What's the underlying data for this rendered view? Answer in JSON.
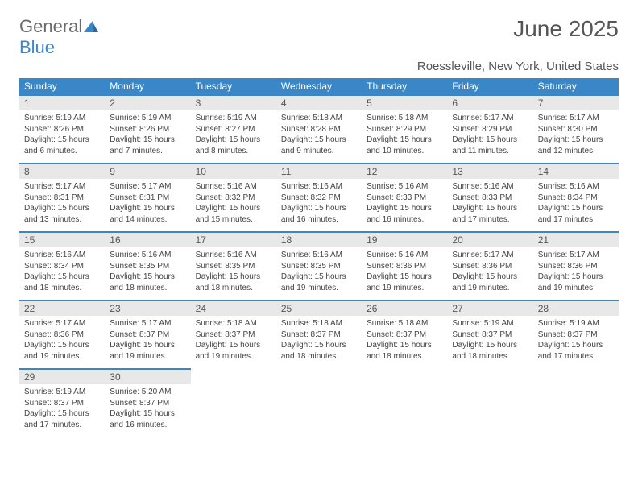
{
  "brand": {
    "part1": "General",
    "part2": "Blue"
  },
  "title": "June 2025",
  "location": "Roessleville, New York, United States",
  "colors": {
    "accent": "#3a87c8",
    "header_text": "#ffffff",
    "daynum_bg": "#e8e8e8",
    "body_text": "#444444",
    "title_text": "#555555"
  },
  "weekdays": [
    "Sunday",
    "Monday",
    "Tuesday",
    "Wednesday",
    "Thursday",
    "Friday",
    "Saturday"
  ],
  "days": [
    {
      "n": "1",
      "sunrise": "5:19 AM",
      "sunset": "8:26 PM",
      "daylight": "15 hours and 6 minutes."
    },
    {
      "n": "2",
      "sunrise": "5:19 AM",
      "sunset": "8:26 PM",
      "daylight": "15 hours and 7 minutes."
    },
    {
      "n": "3",
      "sunrise": "5:19 AM",
      "sunset": "8:27 PM",
      "daylight": "15 hours and 8 minutes."
    },
    {
      "n": "4",
      "sunrise": "5:18 AM",
      "sunset": "8:28 PM",
      "daylight": "15 hours and 9 minutes."
    },
    {
      "n": "5",
      "sunrise": "5:18 AM",
      "sunset": "8:29 PM",
      "daylight": "15 hours and 10 minutes."
    },
    {
      "n": "6",
      "sunrise": "5:17 AM",
      "sunset": "8:29 PM",
      "daylight": "15 hours and 11 minutes."
    },
    {
      "n": "7",
      "sunrise": "5:17 AM",
      "sunset": "8:30 PM",
      "daylight": "15 hours and 12 minutes."
    },
    {
      "n": "8",
      "sunrise": "5:17 AM",
      "sunset": "8:31 PM",
      "daylight": "15 hours and 13 minutes."
    },
    {
      "n": "9",
      "sunrise": "5:17 AM",
      "sunset": "8:31 PM",
      "daylight": "15 hours and 14 minutes."
    },
    {
      "n": "10",
      "sunrise": "5:16 AM",
      "sunset": "8:32 PM",
      "daylight": "15 hours and 15 minutes."
    },
    {
      "n": "11",
      "sunrise": "5:16 AM",
      "sunset": "8:32 PM",
      "daylight": "15 hours and 16 minutes."
    },
    {
      "n": "12",
      "sunrise": "5:16 AM",
      "sunset": "8:33 PM",
      "daylight": "15 hours and 16 minutes."
    },
    {
      "n": "13",
      "sunrise": "5:16 AM",
      "sunset": "8:33 PM",
      "daylight": "15 hours and 17 minutes."
    },
    {
      "n": "14",
      "sunrise": "5:16 AM",
      "sunset": "8:34 PM",
      "daylight": "15 hours and 17 minutes."
    },
    {
      "n": "15",
      "sunrise": "5:16 AM",
      "sunset": "8:34 PM",
      "daylight": "15 hours and 18 minutes."
    },
    {
      "n": "16",
      "sunrise": "5:16 AM",
      "sunset": "8:35 PM",
      "daylight": "15 hours and 18 minutes."
    },
    {
      "n": "17",
      "sunrise": "5:16 AM",
      "sunset": "8:35 PM",
      "daylight": "15 hours and 18 minutes."
    },
    {
      "n": "18",
      "sunrise": "5:16 AM",
      "sunset": "8:35 PM",
      "daylight": "15 hours and 19 minutes."
    },
    {
      "n": "19",
      "sunrise": "5:16 AM",
      "sunset": "8:36 PM",
      "daylight": "15 hours and 19 minutes."
    },
    {
      "n": "20",
      "sunrise": "5:17 AM",
      "sunset": "8:36 PM",
      "daylight": "15 hours and 19 minutes."
    },
    {
      "n": "21",
      "sunrise": "5:17 AM",
      "sunset": "8:36 PM",
      "daylight": "15 hours and 19 minutes."
    },
    {
      "n": "22",
      "sunrise": "5:17 AM",
      "sunset": "8:36 PM",
      "daylight": "15 hours and 19 minutes."
    },
    {
      "n": "23",
      "sunrise": "5:17 AM",
      "sunset": "8:37 PM",
      "daylight": "15 hours and 19 minutes."
    },
    {
      "n": "24",
      "sunrise": "5:18 AM",
      "sunset": "8:37 PM",
      "daylight": "15 hours and 19 minutes."
    },
    {
      "n": "25",
      "sunrise": "5:18 AM",
      "sunset": "8:37 PM",
      "daylight": "15 hours and 18 minutes."
    },
    {
      "n": "26",
      "sunrise": "5:18 AM",
      "sunset": "8:37 PM",
      "daylight": "15 hours and 18 minutes."
    },
    {
      "n": "27",
      "sunrise": "5:19 AM",
      "sunset": "8:37 PM",
      "daylight": "15 hours and 18 minutes."
    },
    {
      "n": "28",
      "sunrise": "5:19 AM",
      "sunset": "8:37 PM",
      "daylight": "15 hours and 17 minutes."
    },
    {
      "n": "29",
      "sunrise": "5:19 AM",
      "sunset": "8:37 PM",
      "daylight": "15 hours and 17 minutes."
    },
    {
      "n": "30",
      "sunrise": "5:20 AM",
      "sunset": "8:37 PM",
      "daylight": "15 hours and 16 minutes."
    }
  ],
  "labels": {
    "sunrise": "Sunrise:",
    "sunset": "Sunset:",
    "daylight": "Daylight:"
  },
  "layout": {
    "cols": 7,
    "first_weekday_index": 0,
    "total_cells": 35
  }
}
